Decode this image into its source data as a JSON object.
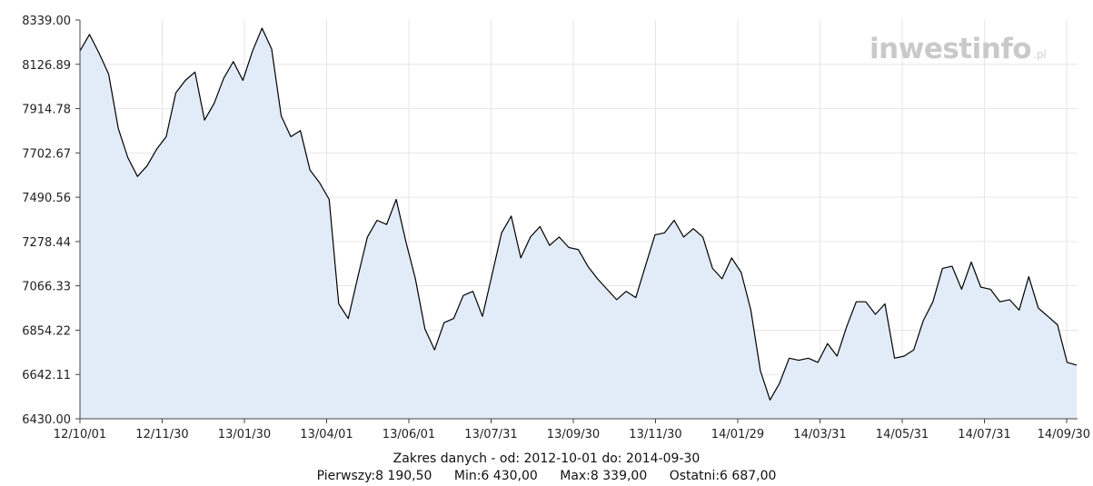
{
  "chart_data": {
    "type": "area",
    "watermark": {
      "main": "inwestinfo",
      "suffix": ".pl"
    },
    "ylim": [
      6430.0,
      8339.0
    ],
    "y_ticks": [
      "8339.00",
      "8126.89",
      "7914.78",
      "7702.67",
      "7490.56",
      "7278.44",
      "7066.33",
      "6854.22",
      "6642.11",
      "6430.00"
    ],
    "x_ticks": [
      "12/10/01",
      "12/11/30",
      "13/01/30",
      "13/04/01",
      "13/06/01",
      "13/07/31",
      "13/09/30",
      "13/11/30",
      "14/01/29",
      "14/03/31",
      "14/05/31",
      "14/07/31",
      "14/09/30"
    ],
    "series": [
      {
        "x": [
          "12/10/01",
          "12/10/08",
          "12/10/15",
          "12/10/22",
          "12/10/29",
          "12/11/05",
          "12/11/12",
          "12/11/19",
          "12/11/26",
          "12/12/03",
          "12/12/10",
          "12/12/17",
          "12/12/24",
          "12/12/31",
          "13/01/07",
          "13/01/14",
          "13/01/21",
          "13/01/28",
          "13/02/04",
          "13/02/11",
          "13/02/18",
          "13/02/25",
          "13/03/04",
          "13/03/11",
          "13/03/18",
          "13/03/25",
          "13/04/01",
          "13/04/08",
          "13/04/15",
          "13/04/22",
          "13/04/29",
          "13/05/06",
          "13/05/13",
          "13/05/20",
          "13/05/27",
          "13/06/03",
          "13/06/10",
          "13/06/17",
          "13/06/24",
          "13/07/01",
          "13/07/08",
          "13/07/15",
          "13/07/22",
          "13/07/29",
          "13/08/05",
          "13/08/12",
          "13/08/19",
          "13/08/26",
          "13/09/02",
          "13/09/09",
          "13/09/16",
          "13/09/23",
          "13/09/30",
          "13/10/07",
          "13/10/14",
          "13/10/21",
          "13/10/28",
          "13/11/04",
          "13/11/11",
          "13/11/18",
          "13/11/25",
          "13/12/02",
          "13/12/09",
          "13/12/16",
          "13/12/23",
          "13/12/30",
          "14/01/06",
          "14/01/13",
          "14/01/20",
          "14/01/27",
          "14/02/03",
          "14/02/10",
          "14/02/17",
          "14/02/24",
          "14/03/03",
          "14/03/10",
          "14/03/17",
          "14/03/24",
          "14/03/31",
          "14/04/07",
          "14/04/14",
          "14/04/21",
          "14/04/28",
          "14/05/05",
          "14/05/12",
          "14/05/19",
          "14/05/26",
          "14/06/02",
          "14/06/09",
          "14/06/16",
          "14/06/23",
          "14/06/30",
          "14/07/07",
          "14/07/14",
          "14/07/21",
          "14/07/28",
          "14/08/04",
          "14/08/11",
          "14/08/18",
          "14/08/25",
          "14/09/01",
          "14/09/08",
          "14/09/15",
          "14/09/22",
          "14/09/30"
        ],
        "values": [
          8190.5,
          8270,
          8180,
          8080,
          7820,
          7680,
          7590,
          7640,
          7720,
          7780,
          7990,
          8050,
          8090,
          7860,
          7940,
          8060,
          8140,
          8050,
          8190,
          8300,
          8200,
          7880,
          7780,
          7810,
          7620,
          7560,
          7480,
          6980,
          6910,
          7110,
          7300,
          7380,
          7360,
          7480,
          7280,
          7100,
          6860,
          6760,
          6890,
          6910,
          7020,
          7040,
          6920,
          7120,
          7320,
          7400,
          7200,
          7300,
          7350,
          7260,
          7300,
          7250,
          7240,
          7160,
          7100,
          7050,
          7000,
          7040,
          7010,
          7160,
          7310,
          7320,
          7380,
          7300,
          7340,
          7300,
          7150,
          7100,
          7200,
          7130,
          6950,
          6660,
          6520,
          6600,
          6720,
          6710,
          6720,
          6700,
          6790,
          6730,
          6870,
          6990,
          6990,
          6930,
          6980,
          6720,
          6730,
          6760,
          6900,
          6990,
          7150,
          7160,
          7050,
          7180,
          7060,
          7050,
          6990,
          7000,
          6950,
          7110,
          6960,
          6920,
          6880,
          6700,
          6687
        ]
      }
    ],
    "range_text": "Zakres danych - od: 2012-10-01 do: 2014-09-30",
    "stats": {
      "first": "Pierwszy:8 190,50",
      "min": "Min:6 430,00",
      "max": "Max:8 339,00",
      "last": "Ostatni:6 687,00"
    },
    "colors": {
      "line": "#000000",
      "fill": "#e2ebf8",
      "grid": "#e6e6e6"
    },
    "grid": true
  }
}
